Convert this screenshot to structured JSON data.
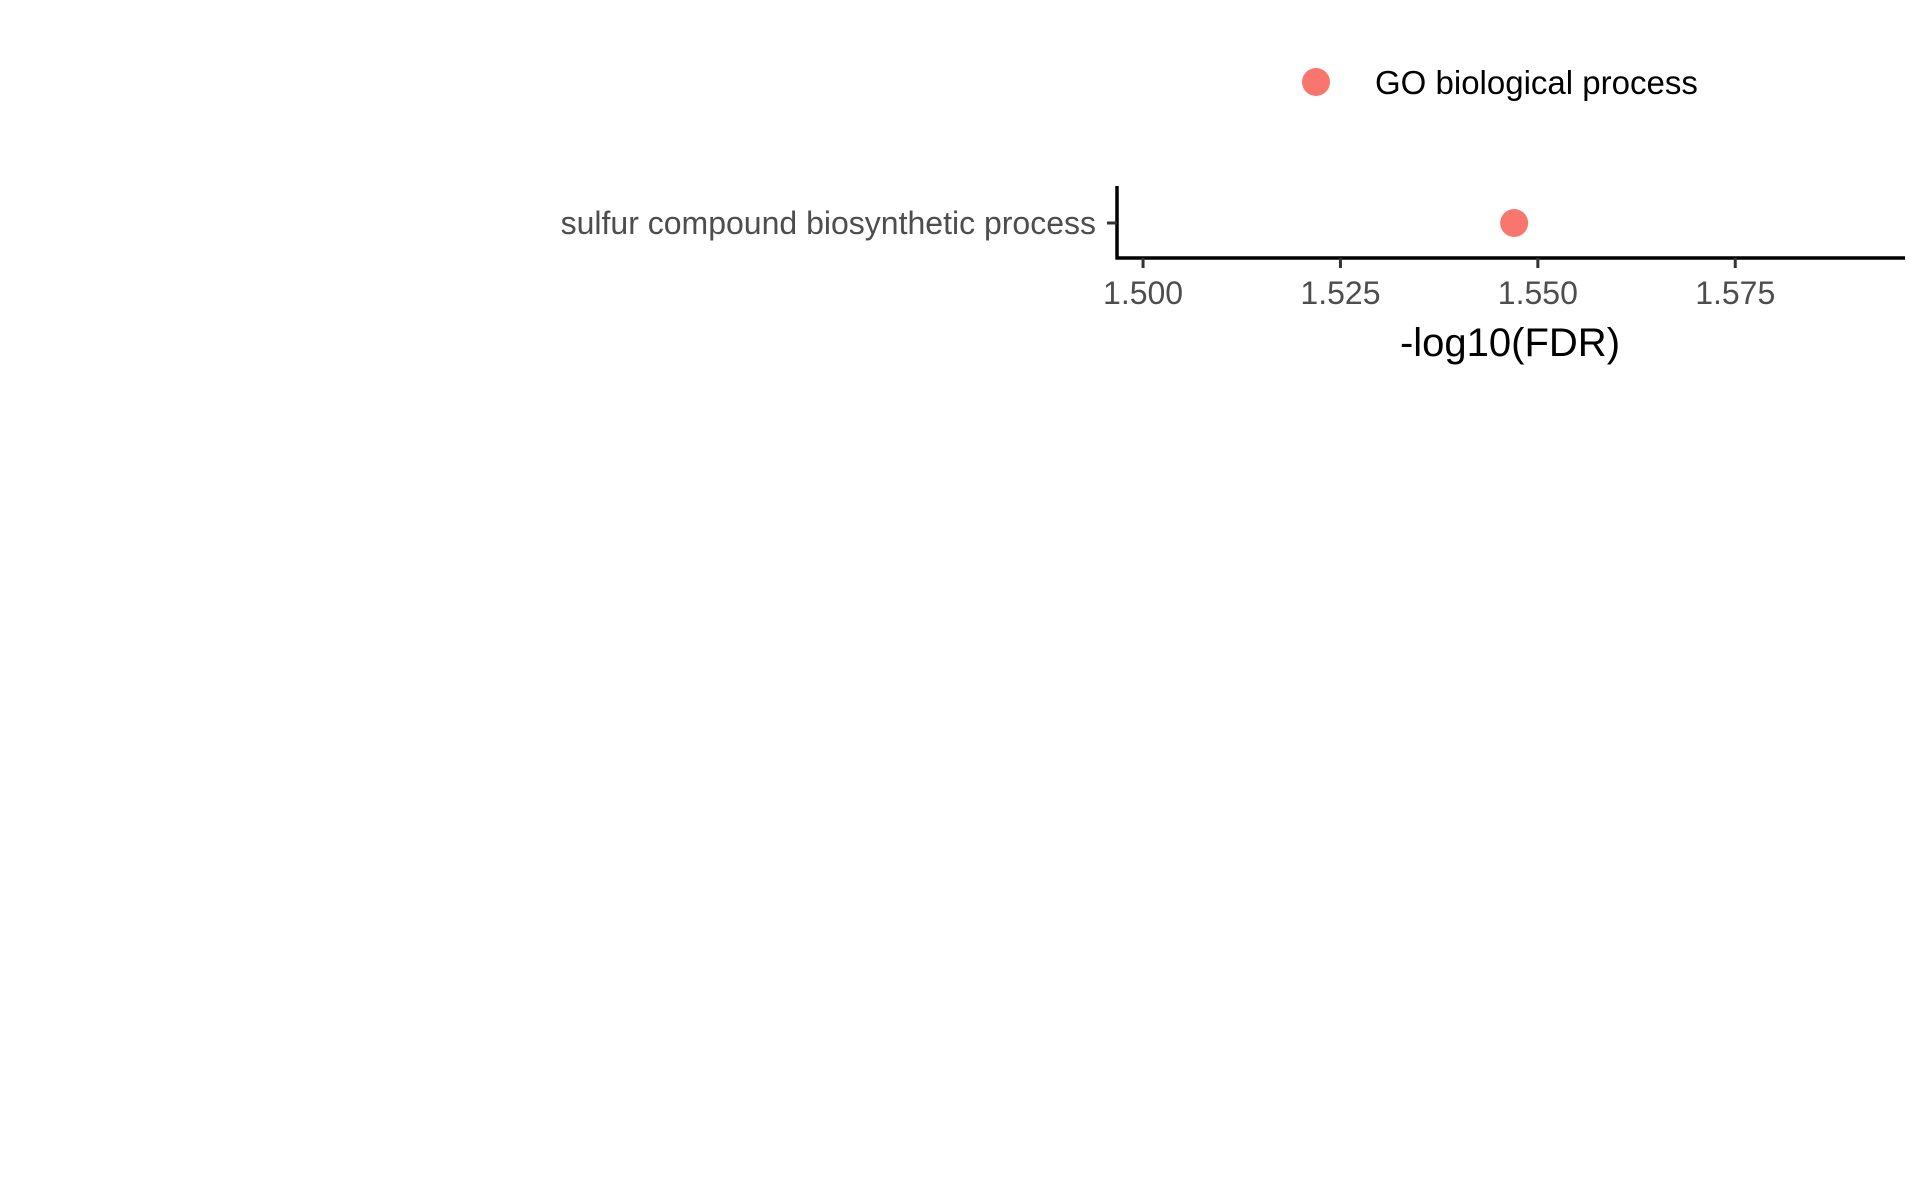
{
  "chart_data": {
    "type": "scatter",
    "categories": [
      "sulfur compound biosynthetic process"
    ],
    "series": [
      {
        "name": "GO biological process",
        "color": "#F8766D",
        "points": [
          {
            "category": "sulfur compound biosynthetic process",
            "x": 1.547
          }
        ]
      }
    ],
    "x_ticks": [
      1.5,
      1.525,
      1.55,
      1.575
    ],
    "x_tick_labels": [
      "1.500",
      "1.525",
      "1.550",
      "1.575"
    ],
    "xlabel": "-log10(FDR)",
    "ylabel": "",
    "title": "",
    "xlim": [
      1.4967,
      1.5965
    ],
    "legend_position": "top-right",
    "grid": false
  }
}
